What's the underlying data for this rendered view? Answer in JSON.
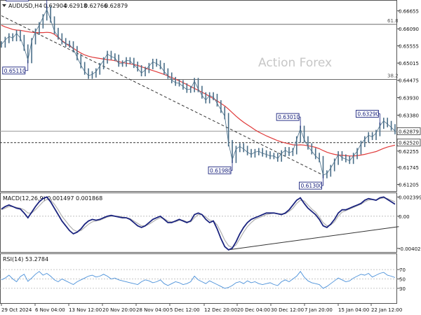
{
  "chart_data": [
    {
      "type": "line",
      "panel": "price",
      "symbol_label": "AUDUSD,H4",
      "ohlc_values": [
        "0.62904",
        "0.62918",
        "0.62766",
        "0.62879"
      ],
      "watermark": "Action Forex",
      "y_ticks": [
        "0.66655",
        "0.66090",
        "0.65555",
        "0.65015",
        "0.64475",
        "0.63930",
        "0.63380",
        "0.62879",
        "0.62520",
        "0.62255",
        "0.61745",
        "0.61205"
      ],
      "ylim": [
        0.6102,
        0.6695
      ],
      "fib_levels": [
        {
          "label": "61.8",
          "value": 0.6623
        },
        {
          "label": "38.2",
          "value": 0.645
        }
      ],
      "price_markers": [
        {
          "label": "0.62879",
          "value": 0.62879,
          "kind": "last"
        },
        {
          "label": "0.62520",
          "value": 0.6252,
          "kind": "support"
        }
      ],
      "annotations": [
        {
          "text": "0.66870",
          "index": 12
        },
        {
          "text": "0.65110",
          "index": 7
        },
        {
          "text": "0.61980",
          "index": 61
        },
        {
          "text": "0.63010",
          "index": 79
        },
        {
          "text": "0.61300",
          "index": 85
        },
        {
          "text": "0.63290",
          "index": 100
        }
      ],
      "series": [
        {
          "name": "close",
          "color": "#4a6e88",
          "values": [
            0.656,
            0.6574,
            0.6585,
            0.658,
            0.6595,
            0.658,
            0.655,
            0.6511,
            0.657,
            0.66,
            0.662,
            0.6645,
            0.667,
            0.6638,
            0.6602,
            0.6585,
            0.657,
            0.6562,
            0.656,
            0.6545,
            0.652,
            0.6495,
            0.6475,
            0.6462,
            0.6466,
            0.6475,
            0.6492,
            0.651,
            0.653,
            0.6522,
            0.6518,
            0.65,
            0.65,
            0.651,
            0.6508,
            0.6496,
            0.6485,
            0.647,
            0.648,
            0.6492,
            0.6505,
            0.65,
            0.6492,
            0.6475,
            0.6462,
            0.6448,
            0.644,
            0.6438,
            0.6428,
            0.6418,
            0.642,
            0.6445,
            0.642,
            0.64,
            0.6385,
            0.64,
            0.6395,
            0.6375,
            0.6355,
            0.6335,
            0.625,
            0.6198,
            0.6232,
            0.624,
            0.6232,
            0.6222,
            0.6215,
            0.6222,
            0.6225,
            0.6218,
            0.6215,
            0.621,
            0.621,
            0.6202,
            0.6218,
            0.6228,
            0.622,
            0.6225,
            0.6262,
            0.6295,
            0.6262,
            0.624,
            0.6225,
            0.621,
            0.62,
            0.615,
            0.6155,
            0.6172,
            0.6192,
            0.6215,
            0.6205,
            0.62,
            0.6195,
            0.621,
            0.6225,
            0.6248,
            0.6262,
            0.6275,
            0.627,
            0.6282,
            0.6305,
            0.632,
            0.631,
            0.63,
            0.6288
          ]
        },
        {
          "name": "ema",
          "color": "#e03a3a",
          "values": [
            0.662,
            0.6615,
            0.6611,
            0.6607,
            0.6605,
            0.6604,
            0.6602,
            0.66,
            0.6598,
            0.6597,
            0.6597,
            0.6597,
            0.6598,
            0.6597,
            0.6592,
            0.6582,
            0.6572,
            0.6563,
            0.6555,
            0.6548,
            0.654,
            0.6533,
            0.6527,
            0.6523,
            0.652,
            0.6518,
            0.6516,
            0.6514,
            0.6512,
            0.6511,
            0.6509,
            0.6506,
            0.6503,
            0.6501,
            0.6499,
            0.6497,
            0.6494,
            0.649,
            0.6486,
            0.6482,
            0.6478,
            0.6474,
            0.647,
            0.6466,
            0.6461,
            0.6456,
            0.6451,
            0.6446,
            0.644,
            0.6434,
            0.6428,
            0.6422,
            0.6416,
            0.641,
            0.6404,
            0.6397,
            0.639,
            0.6383,
            0.6375,
            0.6367,
            0.6357,
            0.6346,
            0.6335,
            0.6325,
            0.6316,
            0.6308,
            0.63,
            0.6292,
            0.6285,
            0.6279,
            0.6273,
            0.6268,
            0.6263,
            0.6258,
            0.6254,
            0.6251,
            0.6248,
            0.6245,
            0.6244,
            0.6245,
            0.6244,
            0.6242,
            0.624,
            0.6237,
            0.6233,
            0.6227,
            0.6222,
            0.6218,
            0.6215,
            0.6213,
            0.6212,
            0.6211,
            0.621,
            0.621,
            0.6211,
            0.6213,
            0.6215,
            0.6218,
            0.6221,
            0.6224,
            0.6229,
            0.6234,
            0.6238,
            0.6241,
            0.6244
          ]
        }
      ],
      "trendlines": [
        {
          "from": {
            "index": 0,
            "value": 0.665
          },
          "to": {
            "index": 85,
            "value": 0.615
          },
          "style": "dashed"
        }
      ]
    },
    {
      "type": "line",
      "panel": "macd",
      "label": "MACD(12,26,9) 0.001497 0.001868",
      "y_ticks": [
        "0.002399",
        "0.00",
        "-0.004021"
      ],
      "ylim": [
        -0.0043,
        0.0027
      ],
      "series": [
        {
          "name": "macd",
          "color": "#1a237e",
          "values": [
            0.0009,
            0.0012,
            0.0014,
            0.0012,
            0.001,
            0.0009,
            0.0004,
            -0.0002,
            0.0005,
            0.0012,
            0.0018,
            0.0022,
            0.0024,
            0.0018,
            0.001,
            0.0002,
            -0.0006,
            -0.0012,
            -0.0018,
            -0.0022,
            -0.002,
            -0.0016,
            -0.001,
            -0.0006,
            -0.0004,
            -0.0005,
            -0.0004,
            -0.0002,
            0.0,
            0.0001,
            0.0,
            -0.0001,
            -0.0002,
            -0.0002,
            -0.0004,
            -0.0008,
            -0.0012,
            -0.0014,
            -0.0012,
            -0.0008,
            -0.0004,
            -0.0002,
            0.0,
            -0.0004,
            -0.0008,
            -0.0008,
            -0.0006,
            -0.0004,
            -0.0006,
            -0.0008,
            -0.0006,
            0.0002,
            0.0004,
            0.0002,
            -0.0004,
            -0.0008,
            -0.0006,
            -0.0016,
            -0.0028,
            -0.0038,
            -0.0042,
            -0.004,
            -0.0032,
            -0.0022,
            -0.0014,
            -0.0008,
            -0.0004,
            -0.0002,
            0.0,
            0.0002,
            0.0004,
            0.0004,
            0.0004,
            0.0003,
            0.0002,
            0.0004,
            0.0008,
            0.0014,
            0.002,
            0.0023,
            0.0016,
            0.001,
            0.0006,
            0.0002,
            -0.0004,
            -0.0012,
            -0.0014,
            -0.001,
            -0.0004,
            0.0004,
            0.0008,
            0.0008,
            0.001,
            0.0012,
            0.0014,
            0.0016,
            0.002,
            0.0022,
            0.0021,
            0.002,
            0.0023,
            0.0024,
            0.0021,
            0.0018,
            0.0015
          ]
        },
        {
          "name": "signal",
          "color": "#b0b0b0",
          "values": [
            0.0008,
            0.001,
            0.0012,
            0.0012,
            0.0011,
            0.001,
            0.0008,
            0.0004,
            0.0004,
            0.0008,
            0.0013,
            0.0018,
            0.0021,
            0.002,
            0.0015,
            0.0008,
            0.0,
            -0.0006,
            -0.0012,
            -0.0017,
            -0.0019,
            -0.0018,
            -0.0014,
            -0.001,
            -0.0007,
            -0.0006,
            -0.0005,
            -0.0003,
            -0.0001,
            0.0,
            0.0,
            0.0,
            -0.0001,
            -0.0002,
            -0.0003,
            -0.0006,
            -0.0009,
            -0.0012,
            -0.0012,
            -0.001,
            -0.0007,
            -0.0004,
            -0.0002,
            -0.0003,
            -0.0006,
            -0.0007,
            -0.0007,
            -0.0005,
            -0.0005,
            -0.0007,
            -0.0007,
            -0.0002,
            0.0002,
            0.0002,
            -0.0001,
            -0.0005,
            -0.0006,
            -0.0011,
            -0.002,
            -0.003,
            -0.0037,
            -0.0039,
            -0.0036,
            -0.0028,
            -0.002,
            -0.0013,
            -0.0008,
            -0.0004,
            -0.0002,
            0.0,
            0.0002,
            0.0003,
            0.0004,
            0.0003,
            0.0003,
            0.0003,
            0.0006,
            0.001,
            0.0016,
            0.002,
            0.0019,
            0.0014,
            0.0009,
            0.0005,
            -0.0001,
            -0.0008,
            -0.0012,
            -0.0011,
            -0.0007,
            0.0,
            0.0005,
            0.0007,
            0.0009,
            0.0011,
            0.0013,
            0.0015,
            0.0018,
            0.002,
            0.0021,
            0.002,
            0.0022,
            0.0023,
            0.0022,
            0.002,
            0.0018
          ]
        }
      ],
      "trendlines": [
        {
          "from": {
            "index": 60,
            "value": -0.0042
          },
          "to": {
            "index": 105,
            "value": -0.0013
          },
          "style": "solid"
        }
      ]
    },
    {
      "type": "line",
      "panel": "rsi",
      "label": "RSI(14) 53.2784",
      "y_ticks": [
        "70",
        "50",
        "30"
      ],
      "ylim": [
        0,
        100
      ],
      "series": [
        {
          "name": "rsi",
          "color": "#4a90d9",
          "values": [
            48,
            52,
            58,
            50,
            44,
            55,
            60,
            45,
            52,
            60,
            66,
            58,
            62,
            56,
            48,
            44,
            50,
            46,
            42,
            38,
            44,
            48,
            52,
            56,
            58,
            54,
            56,
            60,
            56,
            50,
            52,
            48,
            46,
            44,
            42,
            40,
            38,
            44,
            48,
            46,
            42,
            44,
            48,
            40,
            36,
            40,
            44,
            42,
            38,
            40,
            44,
            56,
            48,
            44,
            40,
            46,
            42,
            38,
            34,
            30,
            32,
            36,
            42,
            44,
            40,
            46,
            42,
            44,
            40,
            38,
            40,
            42,
            38,
            36,
            44,
            48,
            44,
            50,
            56,
            66,
            54,
            46,
            42,
            40,
            38,
            30,
            34,
            40,
            46,
            52,
            48,
            44,
            46,
            52,
            56,
            60,
            58,
            62,
            54,
            58,
            62,
            64,
            58,
            56,
            53
          ]
        }
      ]
    }
  ],
  "x_axis": {
    "labels": [
      "29 Oct 2024",
      "6 Nov 04:00",
      "13 Nov 12:00",
      "20 Nov 20:00",
      "28 Nov 04:00",
      "5 Dec 12:00",
      "12 Dec 20:00",
      "20 Dec 04:00",
      "30 Dec 12:00",
      "7 Jan 20:00",
      "15 Jan 04:00",
      "22 Jan 12:00"
    ]
  }
}
